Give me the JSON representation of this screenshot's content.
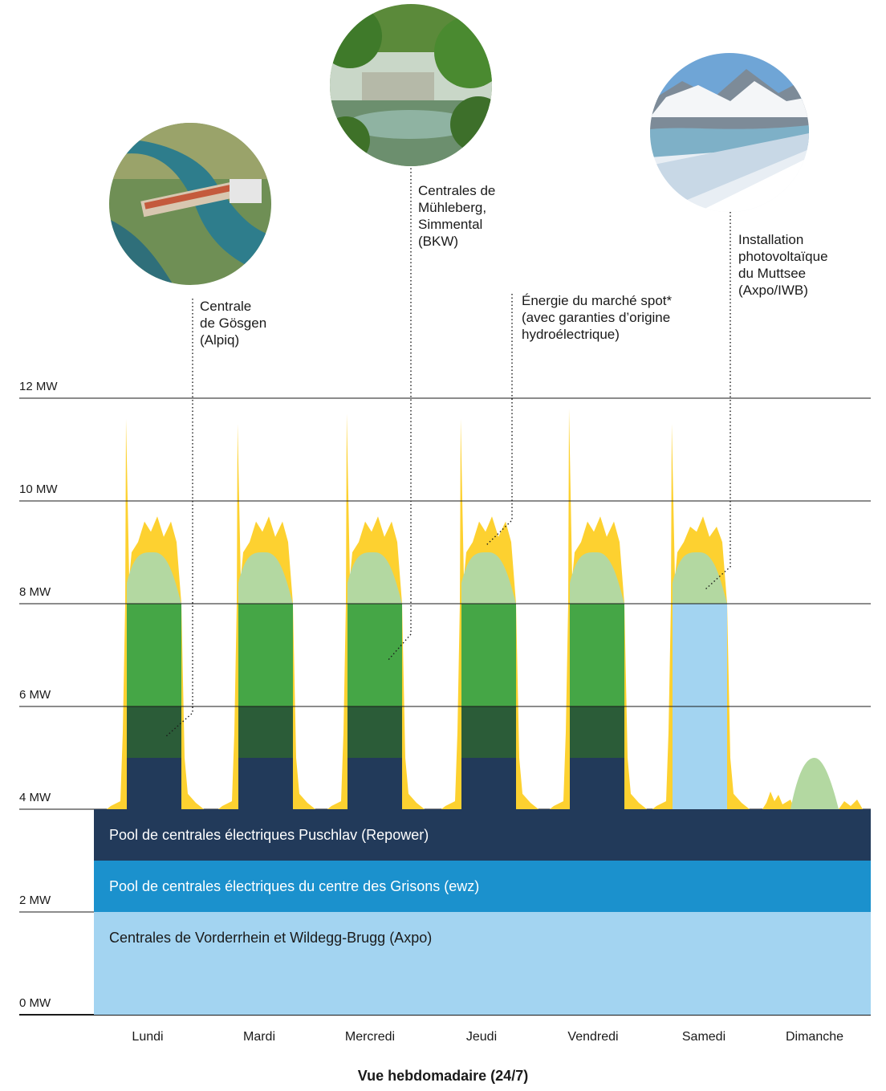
{
  "chart_data": {
    "type": "area",
    "title": "",
    "xlabel": "Vue hebdomadaire (24/7)",
    "ylabel": "",
    "ylim": [
      0,
      12
    ],
    "y_unit": "MW",
    "y_ticks": [
      "0 MW",
      "2 MW",
      "4 MW",
      "6 MW",
      "8 MW",
      "10 MW",
      "12 MW"
    ],
    "categories": [
      "Lundi",
      "Mardi",
      "Mercredi",
      "Jeudi",
      "Vendredi",
      "Samedi",
      "Dimanche"
    ],
    "grid": true,
    "baseload_bands": [
      {
        "name": "Centrales de Vorderrhein et Wildegg-Brugg (Axpo)",
        "from": 0,
        "to": 2,
        "color": "#a3d4f1"
      },
      {
        "name": "Pool de centrales électriques du centre des Grisons (ewz)",
        "from": 2,
        "to": 3,
        "color": "#1b91cd"
      },
      {
        "name": "Pool de centrales électriques Puschlav (Repower)",
        "from": 3,
        "to": 4,
        "color": "#223a5a"
      }
    ],
    "daily_blocks": [
      {
        "day": "Lundi",
        "navy": [
          4,
          5
        ],
        "dark_green": [
          5,
          6
        ],
        "green": [
          6,
          8
        ],
        "peak": 11.6,
        "plateau": 9.6,
        "solar_top": 9.0
      },
      {
        "day": "Mardi",
        "navy": [
          4,
          5
        ],
        "dark_green": [
          5,
          6
        ],
        "green": [
          6,
          8
        ],
        "peak": 11.5,
        "plateau": 9.6,
        "solar_top": 9.0
      },
      {
        "day": "Mercredi",
        "navy": [
          4,
          5
        ],
        "dark_green": [
          5,
          6
        ],
        "green": [
          6,
          8
        ],
        "peak": 11.7,
        "plateau": 9.6,
        "solar_top": 9.0
      },
      {
        "day": "Jeudi",
        "navy": [
          4,
          5
        ],
        "dark_green": [
          5,
          6
        ],
        "green": [
          6,
          8
        ],
        "peak": 11.6,
        "plateau": 9.6,
        "solar_top": 9.0
      },
      {
        "day": "Vendredi",
        "navy": [
          4,
          5
        ],
        "dark_green": [
          5,
          6
        ],
        "green": [
          6,
          8
        ],
        "peak": 11.8,
        "plateau": 9.6,
        "solar_top": 9.0
      },
      {
        "day": "Samedi",
        "light_blue": [
          4,
          8
        ],
        "peak": 11.5,
        "plateau": 9.5,
        "solar_top": 9.0
      },
      {
        "day": "Dimanche",
        "solar_only": true,
        "solar_top": 5.0,
        "base": 4.0
      }
    ],
    "series": [
      {
        "name": "Centrale de Gösgen (Alpiq)",
        "color": "#2b5c38"
      },
      {
        "name": "Centrales de Mühleberg, Simmental (BKW)",
        "color": "#45a646"
      },
      {
        "name": "Énergie du marché spot* (avec garanties d’origine hydroélectrique)",
        "color": "#fdd130"
      },
      {
        "name": "Installation photovoltaïque du Muttsee (Axpo/IWB)",
        "color": "#b3d8a1"
      }
    ]
  },
  "annotations": {
    "gosgen": "Centrale\nde Gösgen\n(Alpiq)",
    "muhleberg": "Centrales de\nMühleberg,\nSimmental\n(BKW)",
    "spot": "Énergie du marché spot*\n(avec garanties d’origine\nhydroélectrique)",
    "muttsee": "Installation\nphotovoltaïque\ndu Muttsee\n(Axpo/IWB)"
  },
  "colors": {
    "navy": "#223a5a",
    "dark_green": "#2b5c38",
    "green": "#45a646",
    "light_green": "#b3d8a1",
    "yellow": "#fdd130",
    "light_blue": "#a3d4f1",
    "mid_blue": "#1b91cd"
  }
}
